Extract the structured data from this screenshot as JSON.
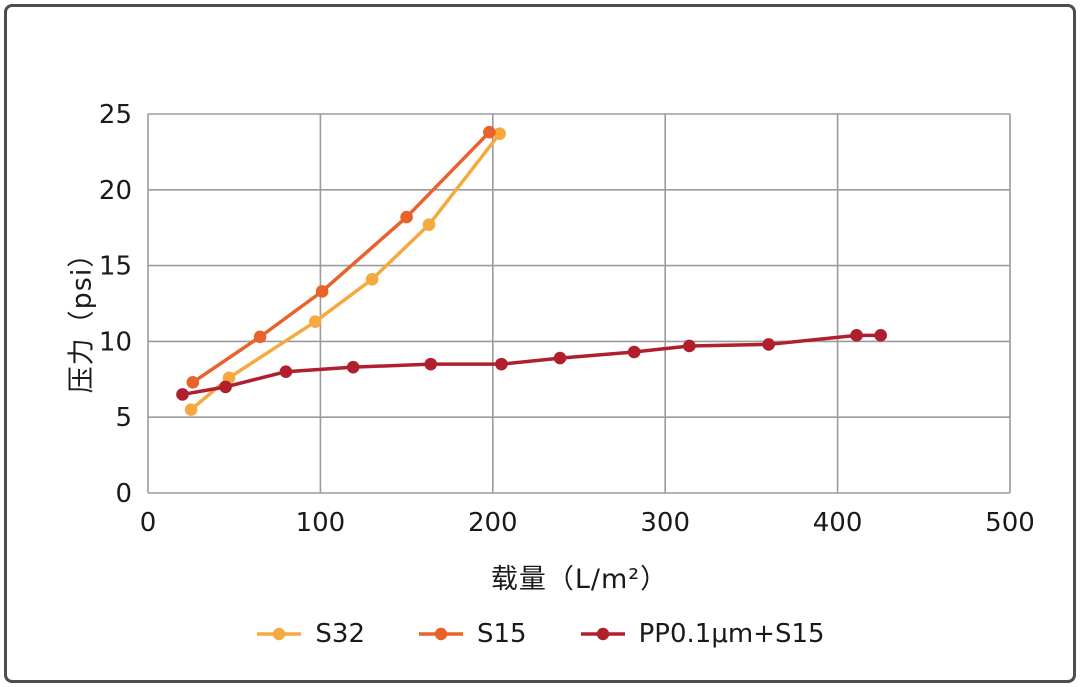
{
  "frame": {
    "background": "#ffffff",
    "border_color": "#4d4d4d"
  },
  "chart_data": {
    "type": "line",
    "title": "",
    "xlabel": "载量（L/m²）",
    "ylabel": "压力（psi）",
    "xlim": [
      0,
      500
    ],
    "ylim": [
      0,
      25
    ],
    "xticks": [
      0,
      100,
      200,
      300,
      400,
      500
    ],
    "yticks": [
      0,
      5,
      10,
      15,
      20,
      25
    ],
    "grid": true,
    "grid_color": "#9b9b9b",
    "tick_color": "#1a1a1a",
    "legend_position": "bottom",
    "series": [
      {
        "name": "S32",
        "color": "#F5A93F",
        "points": [
          [
            25,
            5.5
          ],
          [
            47,
            7.6
          ],
          [
            97,
            11.3
          ],
          [
            130,
            14.1
          ],
          [
            163,
            17.7
          ],
          [
            204,
            23.7
          ]
        ]
      },
      {
        "name": "S15",
        "color": "#E8622C",
        "points": [
          [
            26,
            7.3
          ],
          [
            65,
            10.3
          ],
          [
            101,
            13.3
          ],
          [
            150,
            18.2
          ],
          [
            198,
            23.8
          ]
        ]
      },
      {
        "name": "PP0.1μm+S15",
        "color": "#B01F2E",
        "points": [
          [
            20,
            6.5
          ],
          [
            45,
            7.0
          ],
          [
            80,
            8.0
          ],
          [
            119,
            8.3
          ],
          [
            164,
            8.5
          ],
          [
            205,
            8.5
          ],
          [
            239,
            8.9
          ],
          [
            282,
            9.3
          ],
          [
            314,
            9.7
          ],
          [
            360,
            9.8
          ],
          [
            411,
            10.4
          ],
          [
            425,
            10.4
          ]
        ]
      }
    ]
  }
}
